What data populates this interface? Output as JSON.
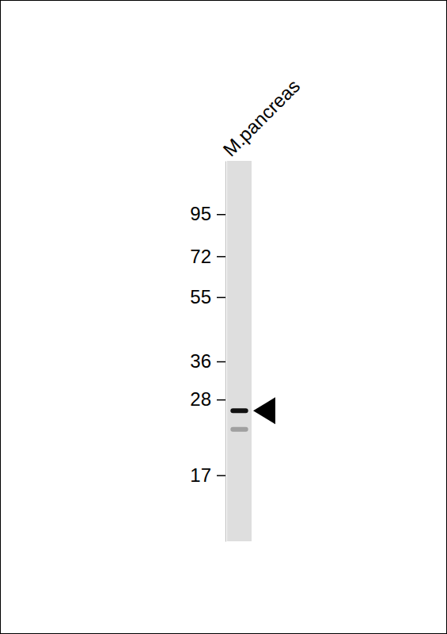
{
  "chart_data": {
    "type": "western_blot",
    "categories": [
      "M.pancreas"
    ],
    "values": [
      [
        26,
        23
      ]
    ],
    "band_intensity": [
      [
        1,
        0.3
      ]
    ],
    "log": "y",
    "ylim": [
      11,
      135
    ],
    "yticks": [
      17,
      28,
      36,
      55,
      72,
      95
    ]
  }
}
